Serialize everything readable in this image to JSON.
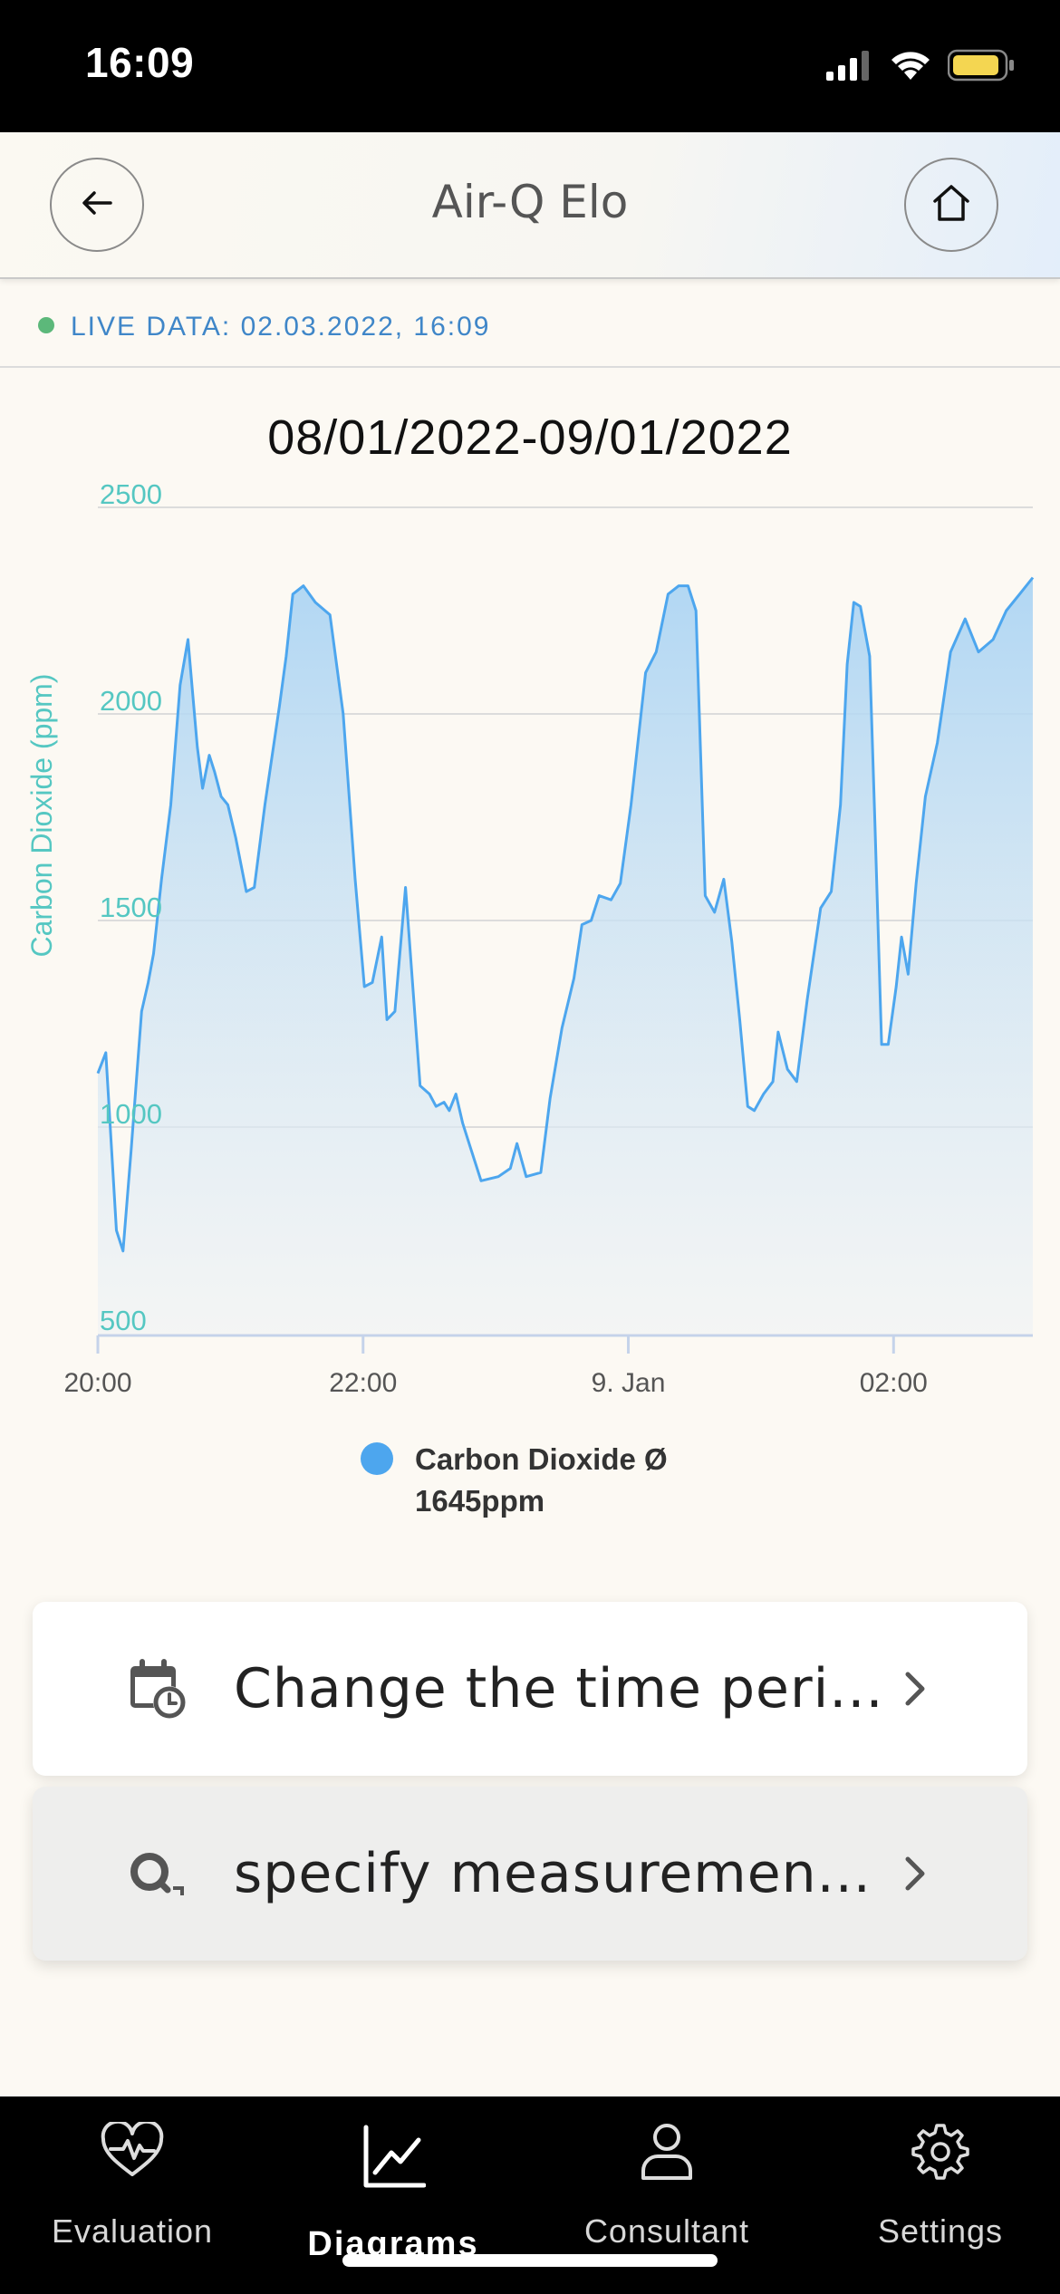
{
  "status_bar": {
    "time": "16:09"
  },
  "header": {
    "title": "Air-Q Elo"
  },
  "live": {
    "text": "LIVE DATA: 02.03.2022, 16:09"
  },
  "chart_data": {
    "type": "area",
    "title": "08/01/2022-09/01/2022",
    "ylabel": "Carbon Dioxide (ppm)",
    "ylim": [
      500,
      2500
    ],
    "y_ticks": [
      "2500",
      "2000",
      "1500",
      "1000",
      "500"
    ],
    "x_tick_labels": [
      "20:00",
      "22:00",
      "9. Jan",
      "02:00"
    ],
    "x_range_hours": [
      0,
      7.05
    ],
    "legend_position": "bottom",
    "series": [
      {
        "name": "Carbon Dioxide Ø 1645ppm",
        "color": "#4da6ee",
        "x": [
          0.0,
          0.06,
          0.14,
          0.19,
          0.25,
          0.33,
          0.38,
          0.42,
          0.48,
          0.55,
          0.62,
          0.68,
          0.75,
          0.79,
          0.84,
          0.88,
          0.93,
          0.98,
          1.04,
          1.12,
          1.18,
          1.26,
          1.37,
          1.42,
          1.47,
          1.55,
          1.64,
          1.75,
          1.85,
          1.94,
          2.01,
          2.07,
          2.14,
          2.18,
          2.24,
          2.32,
          2.43,
          2.5,
          2.55,
          2.61,
          2.65,
          2.7,
          2.75,
          2.81,
          2.89,
          3.02,
          3.11,
          3.16,
          3.23,
          3.34,
          3.41,
          3.5,
          3.59,
          3.65,
          3.72,
          3.78,
          3.87,
          3.94,
          4.02,
          4.13,
          4.21,
          4.3,
          4.38,
          4.45,
          4.51,
          4.58,
          4.65,
          4.72,
          4.78,
          4.84,
          4.9,
          4.95,
          5.02,
          5.09,
          5.13,
          5.2,
          5.27,
          5.35,
          5.45,
          5.53,
          5.6,
          5.65,
          5.7,
          5.75,
          5.82,
          5.86,
          5.91,
          5.96,
          6.02,
          6.06,
          6.11,
          6.17,
          6.24,
          6.33,
          6.43,
          6.54,
          6.64,
          6.75,
          6.85,
          6.95,
          7.05
        ],
        "y": [
          1130,
          1180,
          750,
          700,
          940,
          1280,
          1350,
          1420,
          1600,
          1780,
          2070,
          2180,
          1920,
          1820,
          1900,
          1860,
          1800,
          1780,
          1700,
          1570,
          1580,
          1780,
          2020,
          2140,
          2290,
          2310,
          2270,
          2240,
          2000,
          1600,
          1340,
          1350,
          1460,
          1260,
          1280,
          1580,
          1100,
          1080,
          1050,
          1060,
          1040,
          1080,
          1010,
          950,
          870,
          880,
          900,
          960,
          880,
          890,
          1070,
          1240,
          1360,
          1490,
          1500,
          1560,
          1550,
          1590,
          1780,
          2100,
          2150,
          2290,
          2310,
          2310,
          2250,
          1560,
          1520,
          1600,
          1450,
          1260,
          1050,
          1040,
          1080,
          1110,
          1230,
          1140,
          1110,
          1310,
          1530,
          1570,
          1780,
          2120,
          2270,
          2260,
          2140,
          1730,
          1200,
          1200,
          1340,
          1460,
          1370,
          1590,
          1800,
          1930,
          2150,
          2230,
          2150,
          2180,
          2250,
          2290,
          2330
        ]
      }
    ]
  },
  "legend": {
    "line1": "Carbon Dioxide Ø",
    "line2": "1645ppm"
  },
  "cards": [
    {
      "label": "Change the time peri...",
      "icon": "calendar-clock-icon"
    },
    {
      "label": "specify measuremen...",
      "icon": "magnifier-icon"
    }
  ],
  "tabbar": {
    "tabs": [
      {
        "label": "Evaluation",
        "icon": "heart-pulse-icon"
      },
      {
        "label": "Diagrams",
        "icon": "chart-line-icon",
        "active": true
      },
      {
        "label": "Consultant",
        "icon": "person-icon"
      },
      {
        "label": "Settings",
        "icon": "gear-icon"
      }
    ]
  }
}
